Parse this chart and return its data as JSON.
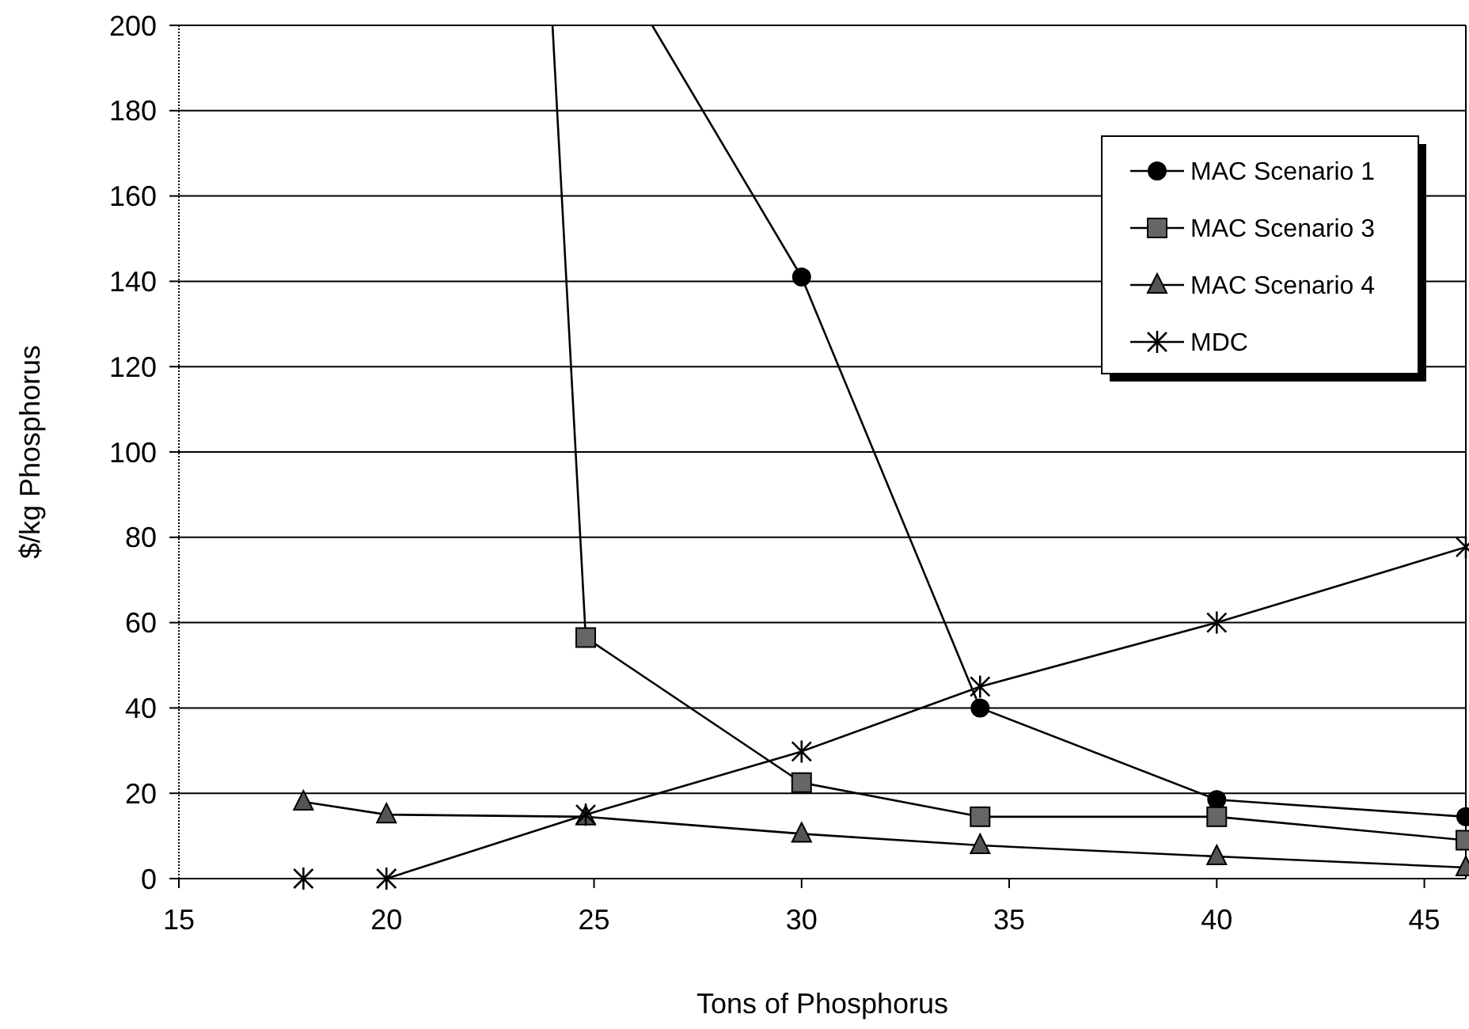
{
  "chart_data": {
    "type": "line",
    "xlabel": "Tons of Phosphorus",
    "ylabel": "$/kg Phosphorus",
    "xlim": [
      15,
      46
    ],
    "xticks": [
      15,
      20,
      25,
      30,
      35,
      40,
      45
    ],
    "ylim": [
      0,
      200
    ],
    "yticks": [
      0,
      20,
      40,
      60,
      80,
      100,
      120,
      140,
      160,
      180,
      200
    ],
    "grid": "y",
    "legend": "top right",
    "line_style": "solid",
    "series": [
      {
        "name": "MAC Scenario 1",
        "color": "#000000",
        "marker": "circle",
        "x": [
          26.4,
          30,
          34.3,
          40,
          46
        ],
        "values": [
          200,
          141,
          40,
          18.5,
          14.5
        ]
      },
      {
        "name": "MAC Scenario 3",
        "color": "#000000",
        "marker": "square",
        "x": [
          24,
          24.8,
          30,
          34.3,
          40,
          46
        ],
        "values": [
          200,
          56.5,
          22.5,
          14.5,
          14.5,
          9
        ]
      },
      {
        "name": "MAC Scenario 4",
        "color": "#000000",
        "marker": "triangle",
        "x": [
          18,
          20,
          24.8,
          30,
          34.3,
          40,
          46
        ],
        "values": [
          18,
          15,
          14.5,
          10.5,
          7.8,
          5.2,
          2.6
        ]
      },
      {
        "name": "MDC",
        "color": "#000000",
        "marker": "cross",
        "x": [
          18,
          20,
          24.8,
          30,
          34.3,
          40,
          46
        ],
        "values": [
          0,
          0,
          15,
          29.8,
          45,
          60,
          77.7
        ]
      }
    ]
  }
}
